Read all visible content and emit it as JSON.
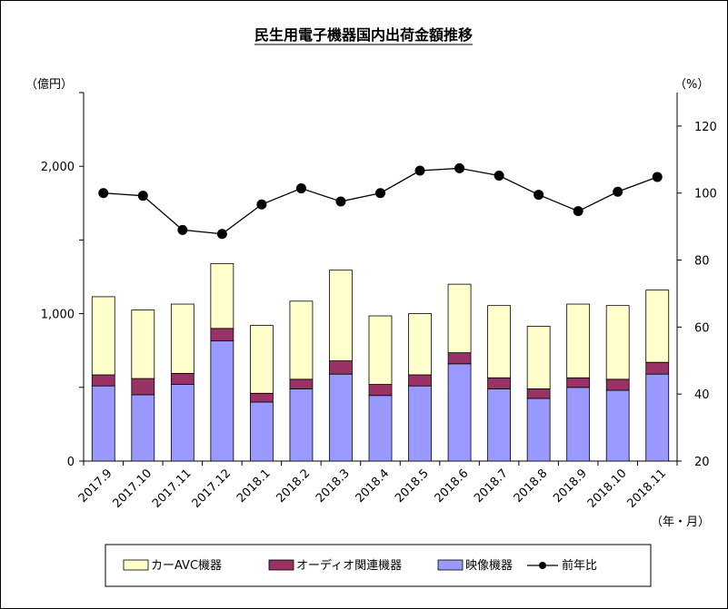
{
  "chart_data": {
    "type": "bar",
    "title": "民生用電子機器国内出荷金額推移",
    "left_unit": "（億円）",
    "right_unit": "（%）",
    "x_unit": "（年・月）",
    "categories": [
      "2017.9",
      "2017.10",
      "2017.11",
      "2017.12",
      "2018.1",
      "2018.2",
      "2018.3",
      "2018.4",
      "2018.5",
      "2018.6",
      "2018.7",
      "2018.8",
      "2018.9",
      "2018.10",
      "2018.11"
    ],
    "y_left": {
      "min": 0,
      "max": 2500,
      "ticks": [
        0,
        1000,
        2000
      ],
      "tick_labels": [
        "0",
        "1,000",
        "2,000"
      ]
    },
    "y_right": {
      "min": 20,
      "max": 130,
      "ticks": [
        20,
        40,
        60,
        80,
        100,
        120
      ],
      "tick_labels": [
        "20",
        "40",
        "60",
        "80",
        "100",
        "120"
      ]
    },
    "grid": false,
    "legend_position": "bottom",
    "series": [
      {
        "name": "映像機器",
        "kind": "bar",
        "color": "#9999ff",
        "values": [
          510,
          450,
          520,
          815,
          400,
          490,
          590,
          445,
          510,
          660,
          490,
          425,
          500,
          480,
          590
        ]
      },
      {
        "name": "オーディオ関連機器",
        "kind": "bar",
        "color": "#993366",
        "values": [
          75,
          110,
          75,
          85,
          60,
          65,
          90,
          75,
          75,
          75,
          75,
          65,
          65,
          75,
          80
        ]
      },
      {
        "name": "カーAVC機器",
        "kind": "bar",
        "color": "#ffffcc",
        "values": [
          530,
          465,
          470,
          440,
          460,
          530,
          615,
          465,
          415,
          465,
          490,
          425,
          500,
          500,
          490
        ]
      },
      {
        "name": "前年比",
        "kind": "line",
        "axis": "right",
        "color": "#000000",
        "values": [
          100.0,
          99.2,
          89.0,
          87.8,
          96.6,
          101.4,
          97.5,
          100.0,
          106.7,
          107.4,
          105.2,
          99.5,
          94.6,
          100.4,
          104.8
        ]
      }
    ],
    "legend_order": [
      "カーAVC機器",
      "オーディオ関連機器",
      "映像機器",
      "前年比"
    ]
  }
}
